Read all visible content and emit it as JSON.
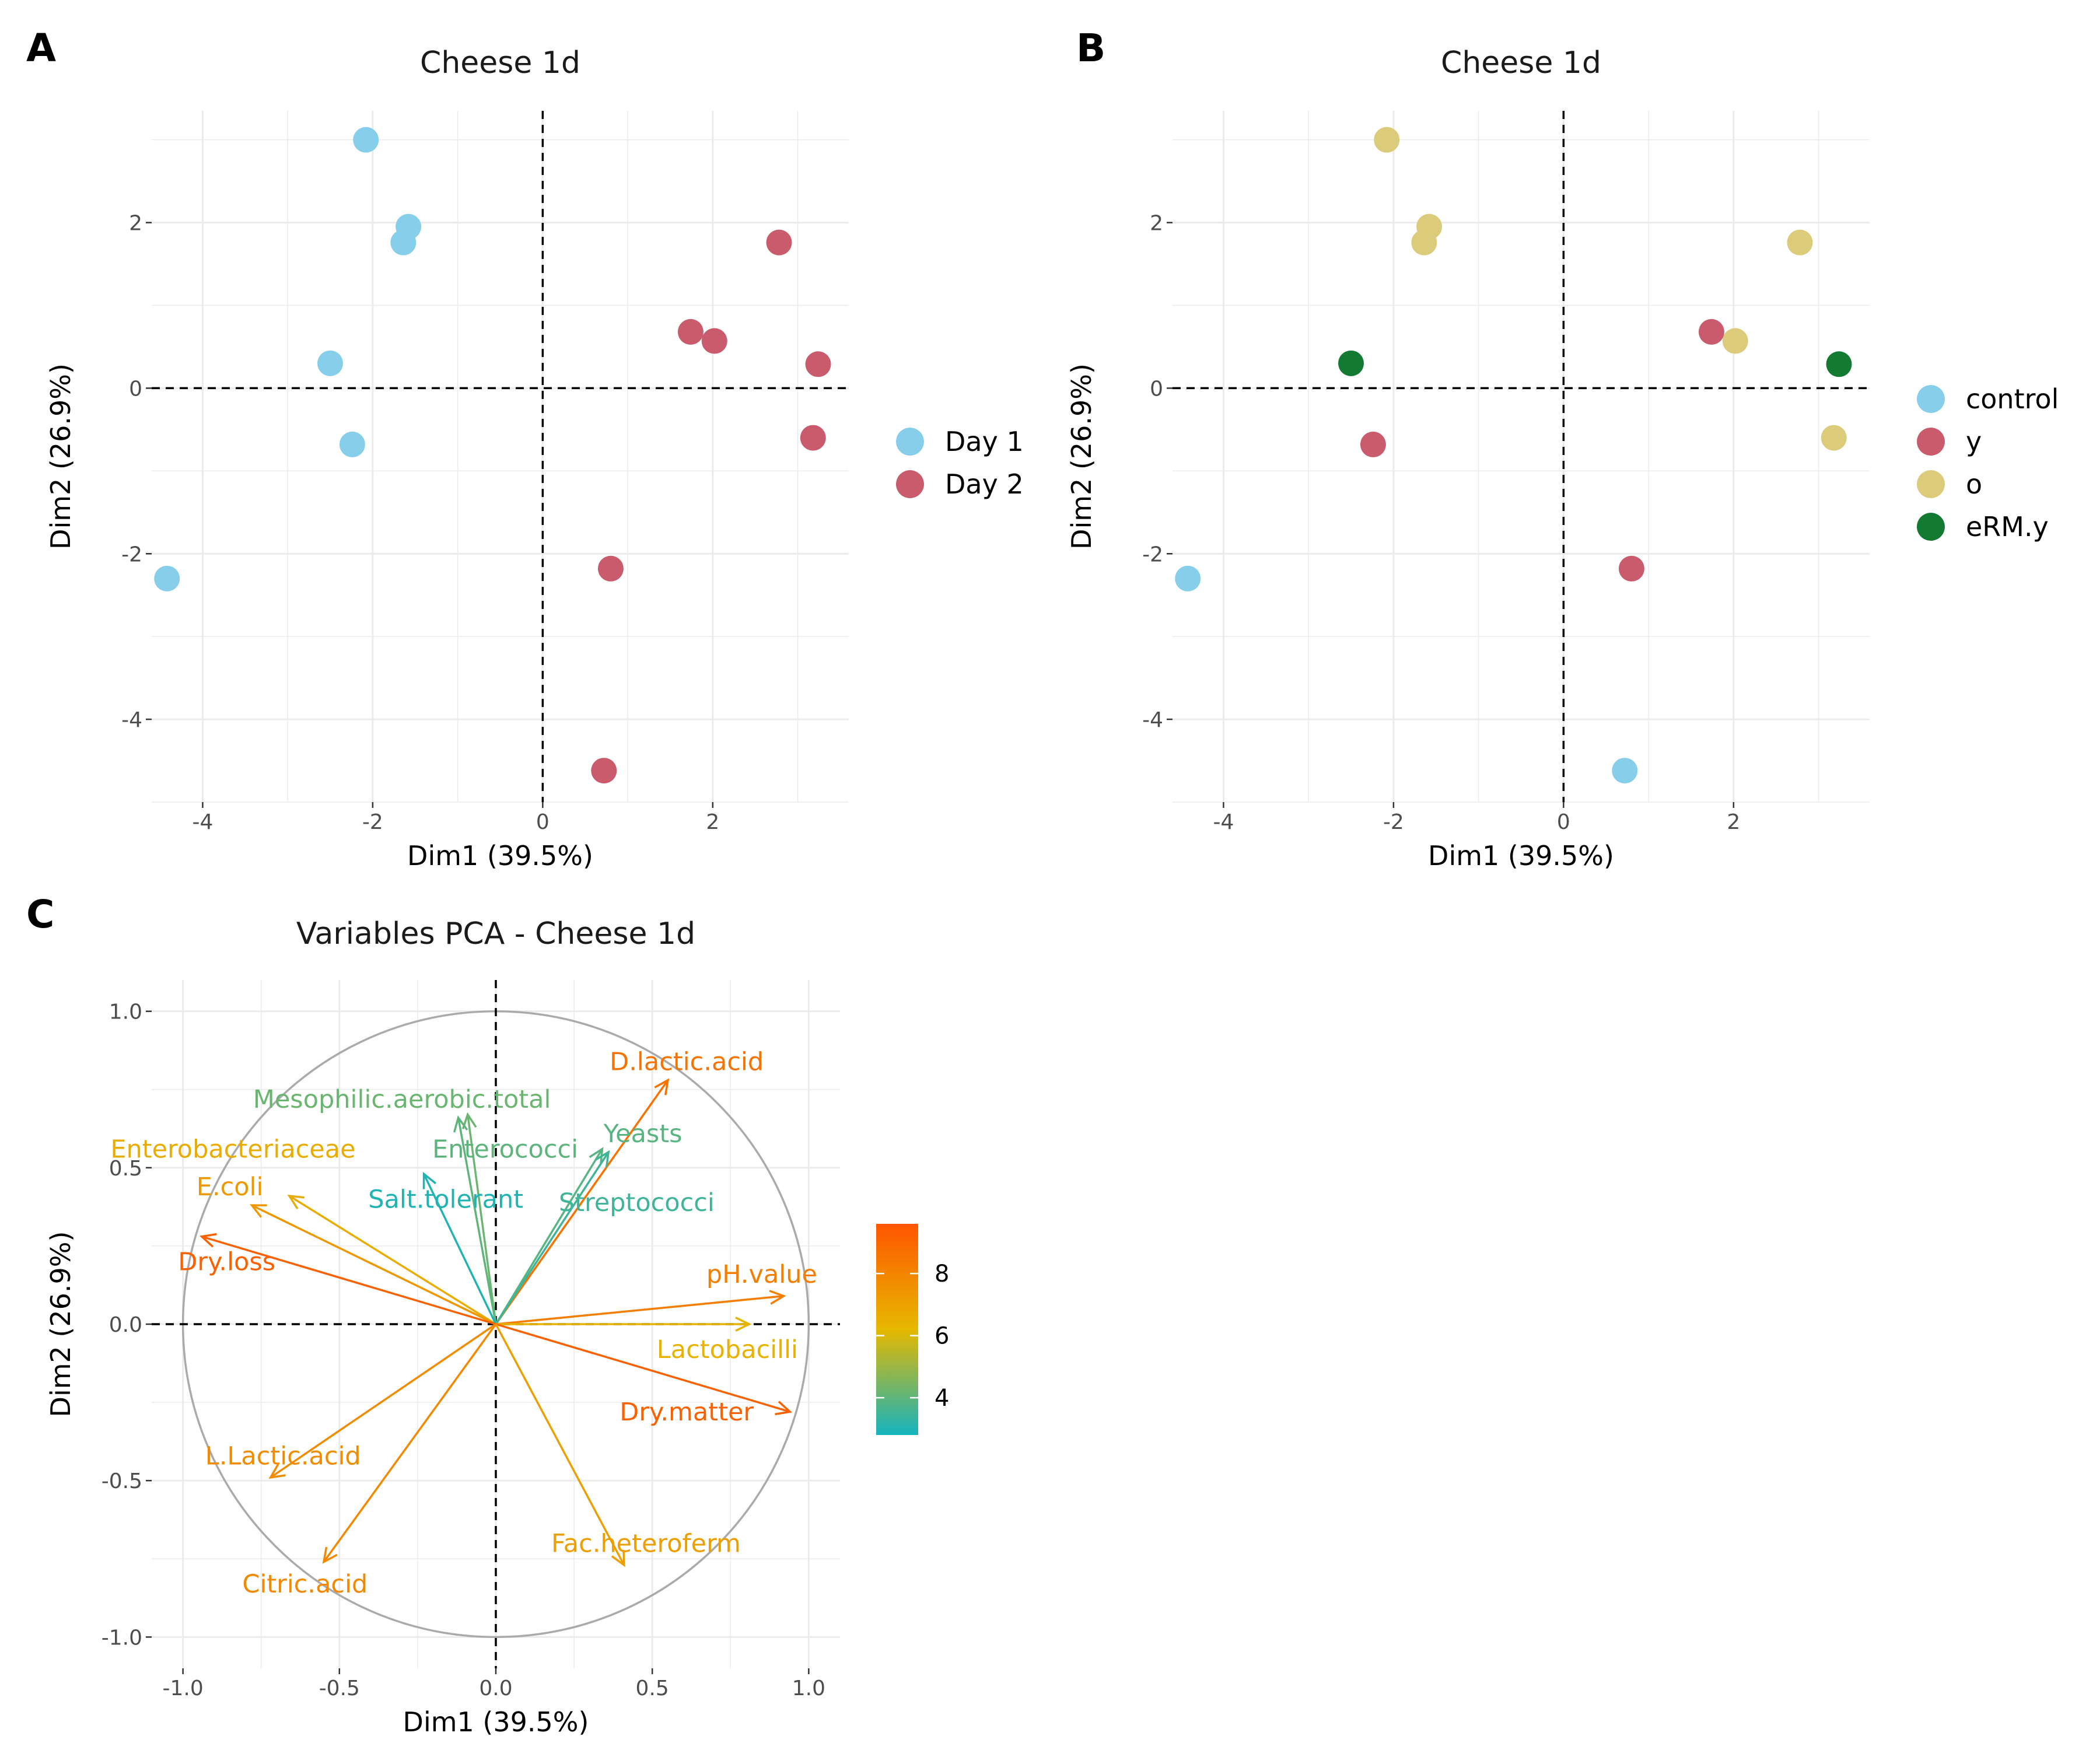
{
  "panels": {
    "A": {
      "letter": "A"
    },
    "B": {
      "letter": "B"
    },
    "C": {
      "letter": "C"
    }
  },
  "colors": {
    "control": "#87CEEB",
    "y": "#C95B6D",
    "o": "#DCCB7A",
    "eRM.y": "#137A32",
    "Day 1": "#87CEEB",
    "Day 2": "#C95B6D",
    "contrib_low": "#14B3BF",
    "contrib_mid": "#E6B800",
    "contrib_high": "#FF5500",
    "grid": "#EBEBEB",
    "circle": "#AAAAAA"
  },
  "chart_data": [
    {
      "id": "A",
      "type": "scatter",
      "title": "Cheese 1d",
      "xlabel": "Dim1 (39.5%)",
      "ylabel": "Dim2 (26.9%)",
      "xlim": [
        -4.6,
        3.6
      ],
      "ylim": [
        -5.0,
        3.35
      ],
      "xticks": [
        -4,
        -2,
        0,
        2
      ],
      "yticks": [
        -4,
        -2,
        0,
        2
      ],
      "xtick_labels": [
        "-4",
        "-2",
        "0",
        "2"
      ],
      "ytick_labels": [
        "-4",
        "-2",
        "0",
        "2"
      ],
      "grid": true,
      "legend_position": "right",
      "legend": [
        "Day 1",
        "Day 2"
      ],
      "points": [
        {
          "x": -2.08,
          "y": 3.0,
          "group": "Day 1"
        },
        {
          "x": -1.58,
          "y": 1.95,
          "group": "Day 1"
        },
        {
          "x": -1.64,
          "y": 1.76,
          "group": "Day 1"
        },
        {
          "x": -2.5,
          "y": 0.3,
          "group": "Day 1"
        },
        {
          "x": -2.24,
          "y": -0.68,
          "group": "Day 1"
        },
        {
          "x": -4.42,
          "y": -2.3,
          "group": "Day 1"
        },
        {
          "x": 2.78,
          "y": 1.76,
          "group": "Day 2"
        },
        {
          "x": 1.74,
          "y": 0.68,
          "group": "Day 2"
        },
        {
          "x": 2.02,
          "y": 0.57,
          "group": "Day 2"
        },
        {
          "x": 3.24,
          "y": 0.29,
          "group": "Day 2"
        },
        {
          "x": 3.18,
          "y": -0.6,
          "group": "Day 2"
        },
        {
          "x": 0.8,
          "y": -2.18,
          "group": "Day 2"
        },
        {
          "x": 0.72,
          "y": -4.62,
          "group": "Day 2"
        }
      ]
    },
    {
      "id": "B",
      "type": "scatter",
      "title": "Cheese 1d",
      "xlabel": "Dim1 (39.5%)",
      "ylabel": "Dim2 (26.9%)",
      "xlim": [
        -4.6,
        3.6
      ],
      "ylim": [
        -5.0,
        3.35
      ],
      "xticks": [
        -4,
        -2,
        0,
        2
      ],
      "yticks": [
        -4,
        -2,
        0,
        2
      ],
      "xtick_labels": [
        "-4",
        "-2",
        "0",
        "2"
      ],
      "ytick_labels": [
        "-4",
        "-2",
        "0",
        "2"
      ],
      "grid": true,
      "legend_position": "right",
      "legend": [
        "control",
        "y",
        "o",
        "eRM.y"
      ],
      "points": [
        {
          "x": -2.08,
          "y": 3.0,
          "group": "o"
        },
        {
          "x": -1.58,
          "y": 1.95,
          "group": "o"
        },
        {
          "x": -1.64,
          "y": 1.76,
          "group": "o"
        },
        {
          "x": 2.78,
          "y": 1.76,
          "group": "o"
        },
        {
          "x": 2.02,
          "y": 0.57,
          "group": "o"
        },
        {
          "x": 3.18,
          "y": -0.6,
          "group": "o"
        },
        {
          "x": -2.5,
          "y": 0.3,
          "group": "eRM.y"
        },
        {
          "x": 3.24,
          "y": 0.29,
          "group": "eRM.y"
        },
        {
          "x": 1.74,
          "y": 0.68,
          "group": "y"
        },
        {
          "x": -2.24,
          "y": -0.68,
          "group": "y"
        },
        {
          "x": 0.8,
          "y": -2.18,
          "group": "y"
        },
        {
          "x": -4.42,
          "y": -2.3,
          "group": "control"
        },
        {
          "x": 0.72,
          "y": -4.62,
          "group": "control"
        }
      ]
    },
    {
      "id": "C",
      "type": "vector",
      "title": "Variables PCA -  Cheese 1d",
      "xlabel": "Dim1 (39.5%)",
      "ylabel": "Dim2 (26.9%)",
      "xlim": [
        -1.1,
        1.1
      ],
      "ylim": [
        -1.1,
        1.1
      ],
      "xticks": [
        -1.0,
        -0.5,
        0.0,
        0.5,
        1.0
      ],
      "yticks": [
        -1.0,
        -0.5,
        0.0,
        0.5,
        1.0
      ],
      "xtick_labels": [
        "-1.0",
        "-0.5",
        "0.0",
        "0.5",
        "1.0"
      ],
      "ytick_labels": [
        "-1.0",
        "-0.5",
        "0.0",
        "0.5",
        "1.0"
      ],
      "grid": true,
      "correlation_circle": true,
      "colorbar": {
        "min": 2.8,
        "max": 9.6,
        "ticks": [
          4,
          6,
          8
        ],
        "tick_labels": [
          "4",
          "6",
          "8"
        ]
      },
      "variables": [
        {
          "name": "D.lactic.acid",
          "x": 0.55,
          "y": 0.78,
          "contrib": 8.6,
          "lx": 0.61,
          "ly": 0.84
        },
        {
          "name": "Mesophilic.aerobic.total",
          "x": -0.09,
          "y": 0.67,
          "contrib": 4.2,
          "lx": -0.3,
          "ly": 0.72
        },
        {
          "name": "Enterobacteriaceae",
          "x": -0.66,
          "y": 0.41,
          "contrib": 6.6,
          "lx": -0.84,
          "ly": 0.56
        },
        {
          "name": "Enterococci",
          "x": -0.12,
          "y": 0.66,
          "contrib": 4.0,
          "lx": 0.03,
          "ly": 0.56
        },
        {
          "name": "Yeasts",
          "x": 0.34,
          "y": 0.56,
          "contrib": 3.9,
          "lx": 0.47,
          "ly": 0.61
        },
        {
          "name": "E.coli",
          "x": -0.78,
          "y": 0.38,
          "contrib": 7.3,
          "lx": -0.85,
          "ly": 0.44
        },
        {
          "name": "Salt.tolerant",
          "x": -0.23,
          "y": 0.48,
          "contrib": 3.0,
          "lx": -0.16,
          "ly": 0.4
        },
        {
          "name": "Streptococci",
          "x": 0.36,
          "y": 0.55,
          "contrib": 3.5,
          "lx": 0.45,
          "ly": 0.39
        },
        {
          "name": "Dry.loss",
          "x": -0.94,
          "y": 0.28,
          "contrib": 9.2,
          "lx": -0.86,
          "ly": 0.2
        },
        {
          "name": "pH.value",
          "x": 0.92,
          "y": 0.09,
          "contrib": 8.2,
          "lx": 0.85,
          "ly": 0.16
        },
        {
          "name": "Lactobacilli",
          "x": 0.81,
          "y": 0.0,
          "contrib": 6.4,
          "lx": 0.74,
          "ly": -0.08
        },
        {
          "name": "Dry.matter",
          "x": 0.94,
          "y": -0.28,
          "contrib": 9.2,
          "lx": 0.61,
          "ly": -0.28
        },
        {
          "name": "L.Lactic.acid",
          "x": -0.72,
          "y": -0.49,
          "contrib": 7.7,
          "lx": -0.68,
          "ly": -0.42
        },
        {
          "name": "Fac.heteroferm",
          "x": 0.41,
          "y": -0.77,
          "contrib": 7.1,
          "lx": 0.48,
          "ly": -0.7
        },
        {
          "name": "Citric.acid",
          "x": -0.55,
          "y": -0.76,
          "contrib": 7.8,
          "lx": -0.61,
          "ly": -0.83
        }
      ]
    }
  ]
}
